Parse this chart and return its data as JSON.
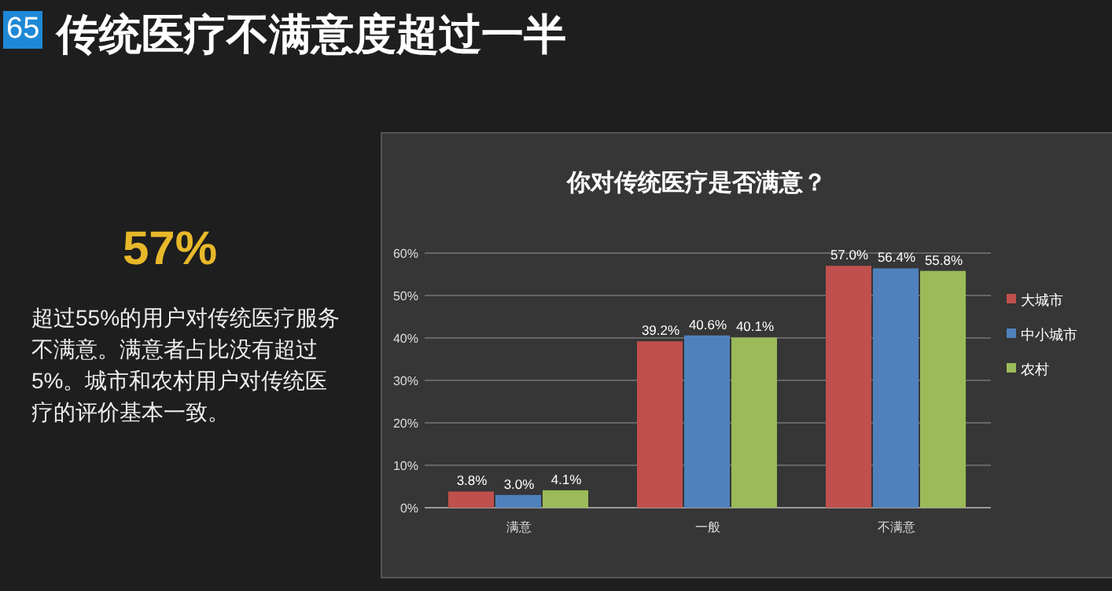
{
  "chart_data": [
    {
      "type": "other",
      "title": "传统医疗不满意度超过一半",
      "annotations": [
        "65",
        "57%",
        "超过55%的用户对传统医疗服务不满意。满意者占比没有超过5%。城市和农村用户对传统医疗的评价基本一致。"
      ]
    },
    {
      "type": "bar",
      "title": "你对传统医疗是否满意？",
      "categories": [
        "满意",
        "一般",
        "不满意"
      ],
      "series": [
        {
          "name": "大城市",
          "color": "#c0504d",
          "values": [
            3.8,
            39.2,
            57.0
          ],
          "value_labels": [
            "3.8%",
            "39.2%",
            "57.0%"
          ]
        },
        {
          "name": "中小城市",
          "color": "#4f81bd",
          "values": [
            3.0,
            40.6,
            56.4
          ],
          "value_labels": [
            "3.0%",
            "40.6%",
            "56.4%"
          ]
        },
        {
          "name": "农村",
          "color": "#9bbb59",
          "values": [
            4.1,
            40.1,
            55.8
          ],
          "value_labels": [
            "4.1%",
            "40.1%",
            "55.8%"
          ]
        }
      ],
      "ylim": [
        0,
        60
      ],
      "yticks": [
        {
          "value": 0,
          "label": "0%"
        },
        {
          "value": 10,
          "label": "10%"
        },
        {
          "value": 20,
          "label": "20%"
        },
        {
          "value": 30,
          "label": "30%"
        },
        {
          "value": 40,
          "label": "40%"
        },
        {
          "value": 50,
          "label": "50%"
        },
        {
          "value": 60,
          "label": "60%"
        }
      ],
      "grid": "y",
      "legend": "right"
    }
  ]
}
